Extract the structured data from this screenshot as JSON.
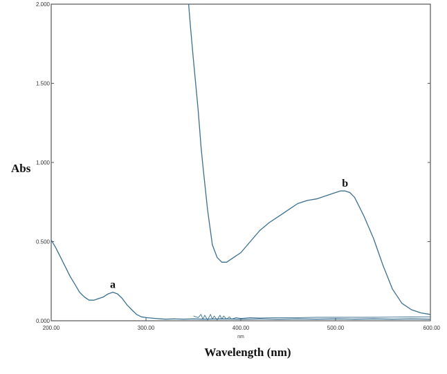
{
  "chart_data": {
    "type": "line",
    "title": "",
    "xlabel": "Wavelength (nm)",
    "x_unit_label": "nm",
    "ylabel": "Abs",
    "xlim": [
      200,
      600
    ],
    "ylim": [
      0,
      2
    ],
    "x_ticks": [
      "200.00",
      "300.00",
      "400.00",
      "500.00",
      "600.00"
    ],
    "y_ticks": [
      "0.000",
      "0.500",
      "1.000",
      "1.500",
      "2.000"
    ],
    "grid": false,
    "legend": "none",
    "colors": {
      "curve": "#3a6f8f",
      "axes": "#555555"
    },
    "series": [
      {
        "label": "a",
        "label_at": [
          265,
          0.19
        ],
        "x": [
          200,
          205,
          210,
          215,
          220,
          225,
          230,
          235,
          240,
          245,
          250,
          255,
          260,
          265,
          270,
          275,
          280,
          285,
          290,
          295,
          300,
          310,
          320,
          330,
          340,
          350,
          360,
          380,
          400,
          420,
          440,
          460,
          480,
          500,
          520,
          540,
          560,
          580,
          600
        ],
        "y": [
          0.51,
          0.46,
          0.4,
          0.34,
          0.28,
          0.23,
          0.18,
          0.15,
          0.13,
          0.13,
          0.14,
          0.15,
          0.17,
          0.18,
          0.17,
          0.14,
          0.1,
          0.07,
          0.04,
          0.025,
          0.02,
          0.015,
          0.01,
          0.012,
          0.01,
          0.012,
          0.01,
          0.012,
          0.01,
          0.012,
          0.01,
          0.012,
          0.01,
          0.012,
          0.01,
          0.012,
          0.01,
          0.012,
          0.01
        ]
      },
      {
        "label": "b",
        "label_at": [
          510,
          0.83
        ],
        "x": [
          345,
          347,
          350,
          355,
          358,
          360,
          365,
          370,
          375,
          380,
          385,
          390,
          400,
          410,
          420,
          430,
          440,
          450,
          460,
          470,
          480,
          490,
          500,
          505,
          510,
          515,
          520,
          525,
          530,
          540,
          550,
          560,
          570,
          580,
          590,
          600
        ],
        "y": [
          2.0,
          1.85,
          1.65,
          1.33,
          1.1,
          0.98,
          0.7,
          0.48,
          0.4,
          0.37,
          0.37,
          0.39,
          0.43,
          0.5,
          0.57,
          0.62,
          0.66,
          0.7,
          0.74,
          0.76,
          0.77,
          0.79,
          0.81,
          0.82,
          0.82,
          0.81,
          0.78,
          0.72,
          0.66,
          0.52,
          0.35,
          0.2,
          0.11,
          0.07,
          0.05,
          0.04
        ]
      },
      {
        "label": "",
        "x": [
          350,
          355,
          358,
          360,
          362,
          365,
          368,
          370,
          372,
          375,
          378,
          380,
          382,
          385,
          388,
          390,
          395,
          400,
          410,
          420,
          440,
          460,
          480,
          500,
          520,
          540,
          560,
          580,
          600
        ],
        "y": [
          0.03,
          0.02,
          0.04,
          0.01,
          0.035,
          0.005,
          0.04,
          0.01,
          0.03,
          0.005,
          0.035,
          0.01,
          0.03,
          0.01,
          0.025,
          0.01,
          0.02,
          0.015,
          0.02,
          0.018,
          0.02,
          0.02,
          0.022,
          0.022,
          0.022,
          0.022,
          0.023,
          0.024,
          0.025
        ]
      }
    ]
  }
}
